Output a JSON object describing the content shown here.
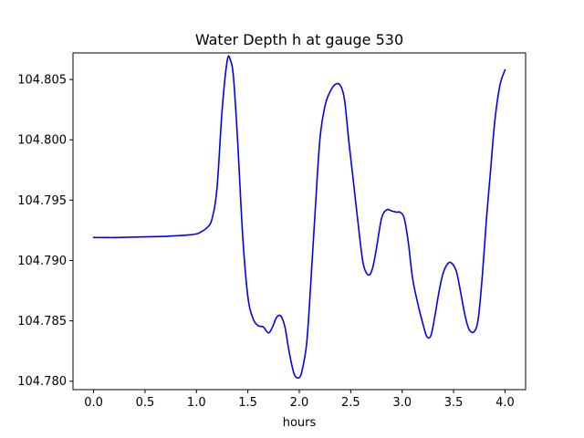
{
  "chart_data": {
    "type": "line",
    "title": "Water Depth h at gauge 530",
    "xlabel": "hours",
    "ylabel": "",
    "xlim": [
      -0.2,
      4.2
    ],
    "ylim": [
      104.7793,
      104.8072
    ],
    "grid": false,
    "legend": "none",
    "x_ticks": [
      0.0,
      0.5,
      1.0,
      1.5,
      2.0,
      2.5,
      3.0,
      3.5,
      4.0
    ],
    "x_tick_labels": [
      "0.0",
      "0.5",
      "1.0",
      "1.5",
      "2.0",
      "2.5",
      "3.0",
      "3.5",
      "4.0"
    ],
    "y_ticks": [
      104.78,
      104.785,
      104.79,
      104.795,
      104.8,
      104.805
    ],
    "y_tick_labels": [
      "104.780",
      "104.785",
      "104.790",
      "104.795",
      "104.800",
      "104.805"
    ],
    "series": [
      {
        "color": "#0000ff",
        "x": [
          0.0,
          0.1,
          0.2,
          0.3,
          0.4,
          0.5,
          0.6,
          0.7,
          0.8,
          0.9,
          1.0,
          1.05,
          1.1,
          1.15,
          1.2,
          1.25,
          1.3,
          1.33,
          1.36,
          1.4,
          1.45,
          1.5,
          1.55,
          1.6,
          1.65,
          1.7,
          1.74,
          1.78,
          1.82,
          1.86,
          1.9,
          1.95,
          2.0,
          2.03,
          2.07,
          2.1,
          2.15,
          2.2,
          2.25,
          2.3,
          2.35,
          2.4,
          2.44,
          2.48,
          2.52,
          2.57,
          2.62,
          2.67,
          2.71,
          2.75,
          2.8,
          2.85,
          2.9,
          2.95,
          2.98,
          3.02,
          3.06,
          3.1,
          3.15,
          3.2,
          3.24,
          3.28,
          3.32,
          3.36,
          3.4,
          3.45,
          3.49,
          3.53,
          3.57,
          3.61,
          3.65,
          3.7,
          3.74,
          3.78,
          3.82,
          3.86,
          3.9,
          3.95,
          4.0
        ],
        "y": [
          104.7919,
          104.7919,
          104.7919,
          104.79192,
          104.79194,
          104.79196,
          104.79198,
          104.792,
          104.79205,
          104.7921,
          104.7922,
          104.7924,
          104.7927,
          104.7934,
          104.796,
          104.8025,
          104.8066,
          104.8066,
          104.8052,
          104.8,
          104.792,
          104.787,
          104.7852,
          104.7846,
          104.7845,
          104.784,
          104.7845,
          104.7853,
          104.7854,
          104.7845,
          104.7825,
          104.7806,
          104.7803,
          104.781,
          104.783,
          104.7865,
          104.7935,
          104.8,
          104.8028,
          104.804,
          104.8046,
          104.8045,
          104.8033,
          104.8,
          104.797,
          104.7932,
          104.7898,
          104.7888,
          104.7893,
          104.791,
          104.7935,
          104.7942,
          104.7941,
          104.794,
          104.794,
          104.7935,
          104.7915,
          104.7886,
          104.7865,
          104.7848,
          104.7837,
          104.7838,
          104.7855,
          104.7875,
          104.789,
          104.7898,
          104.7897,
          104.789,
          104.7873,
          104.7855,
          104.7843,
          104.7841,
          104.7852,
          104.7888,
          104.7935,
          104.7975,
          104.8015,
          104.8045,
          104.8058
        ]
      }
    ]
  }
}
